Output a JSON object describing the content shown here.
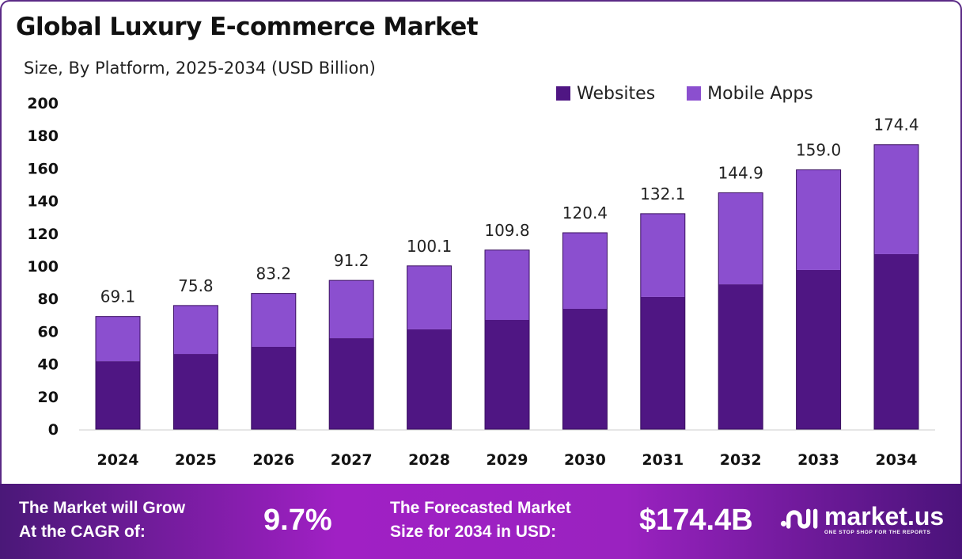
{
  "chart_data": {
    "type": "bar",
    "stacked": true,
    "title": "Global Luxury E-commerce Market",
    "subtitle": "Size, By Platform, 2025-2034 (USD Billion)",
    "categories": [
      "2024",
      "2025",
      "2026",
      "2027",
      "2028",
      "2029",
      "2030",
      "2031",
      "2032",
      "2033",
      "2034"
    ],
    "series": [
      {
        "name": "Websites",
        "color": "#4f1683",
        "values": [
          41.7,
          46.1,
          50.5,
          55.8,
          61.2,
          67.0,
          73.8,
          81.1,
          88.8,
          97.6,
          107.3
        ]
      },
      {
        "name": "Mobile Apps",
        "color": "#8b4fcf",
        "values": [
          27.4,
          29.7,
          32.7,
          35.4,
          38.9,
          42.8,
          46.6,
          51.0,
          56.1,
          61.4,
          67.1
        ]
      }
    ],
    "totals": [
      "69.1",
      "75.8",
      "83.2",
      "91.2",
      "100.1",
      "109.8",
      "120.4",
      "132.1",
      "144.9",
      "159.0",
      "174.4"
    ],
    "ylim": [
      0,
      200
    ],
    "yticks": [
      "0",
      "20",
      "40",
      "60",
      "80",
      "100",
      "120",
      "140",
      "160",
      "180",
      "200"
    ],
    "grid": false,
    "legend": "top-right"
  },
  "footer": {
    "cagr_label_1": "The Market will Grow",
    "cagr_label_2": "At the CAGR of:",
    "cagr_value": "9.7%",
    "forecast_label_1": "The Forecasted Market",
    "forecast_label_2": "Size for 2034 in USD:",
    "forecast_value": "$174.4B",
    "brand": "market.us",
    "tagline": "ONE STOP SHOP FOR THE REPORTS"
  }
}
